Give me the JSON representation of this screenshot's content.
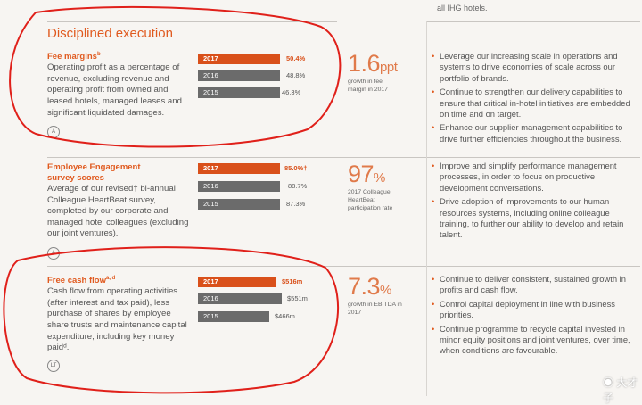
{
  "header": {
    "top_right_fragment": "all IHG hotels.",
    "section_title": "Disciplined execution"
  },
  "metrics": [
    {
      "title": "Fee margins",
      "title_sup": "b",
      "description": "Operating profit as a percentage of revenue, excluding revenue and operating profit from owned and leased hotels, managed leases and significant liquidated damages.",
      "badge": "A",
      "bars": [
        {
          "year": "2017",
          "value_label": "50.4%",
          "value": 50.4
        },
        {
          "year": "2016",
          "value_label": "48.8%",
          "value": 48.8
        },
        {
          "year": "2015",
          "value_label": "46.3%",
          "value": 46.3
        }
      ],
      "highlight_value": "1.6",
      "highlight_unit": "ppt",
      "highlight_caption": "growth in fee margin in 2017",
      "priorities": [
        "Leverage our increasing scale in operations and systems to drive economies of scale across our portfolio of brands.",
        "Continue to strengthen our delivery capabilities to ensure that critical in-hotel initiatives are embedded on time and on target.",
        "Enhance our supplier management capabilities to drive further efficiencies throughout the business."
      ]
    },
    {
      "title": "Employee Engagement survey scores",
      "title_sup": "",
      "description": "Average of our revised† bi-annual Colleague HeartBeat survey, completed by our corporate and managed hotel colleagues (excluding our joint ventures).",
      "badge": "A",
      "bars": [
        {
          "year": "2017",
          "value_label": "85.0%†",
          "value": 85.0
        },
        {
          "year": "2016",
          "value_label": "88.7%",
          "value": 88.7
        },
        {
          "year": "2015",
          "value_label": "87.3%",
          "value": 87.3
        }
      ],
      "highlight_value": "97",
      "highlight_unit": "%",
      "highlight_caption": "2017 Colleague HeartBeat participation rate",
      "priorities": [
        "Improve and simplify performance management processes, in order to focus on productive development conversations.",
        "Drive adoption of improvements to our human resources systems, including online colleague training, to further our ability to develop and retain talent."
      ]
    },
    {
      "title": "Free cash flow",
      "title_sup": "a, d",
      "description": "Cash flow from operating activities (after interest and tax paid), less purchase of shares by employee share trusts and maintenance capital expenditure, including key money paidᵈ.",
      "badge": "LT",
      "bars": [
        {
          "year": "2017",
          "value_label": "$516m",
          "value": 516
        },
        {
          "year": "2016",
          "value_label": "$551m",
          "value": 551
        },
        {
          "year": "2015",
          "value_label": "$466m",
          "value": 466
        }
      ],
      "highlight_value": "7.3",
      "highlight_unit": "%",
      "highlight_caption": "growth in EBITDA in 2017",
      "priorities": [
        "Continue to deliver consistent, sustained growth in profits and cash flow.",
        "Control capital deployment in line with business priorities.",
        "Continue programme to recycle capital invested in minor equity positions and joint ventures, over time, when conditions are favourable."
      ]
    }
  ],
  "watermark": "大才子",
  "colors": {
    "accent": "#d9501a",
    "bar_prev": "#6b6b6b",
    "annotation": "#e0201a"
  }
}
